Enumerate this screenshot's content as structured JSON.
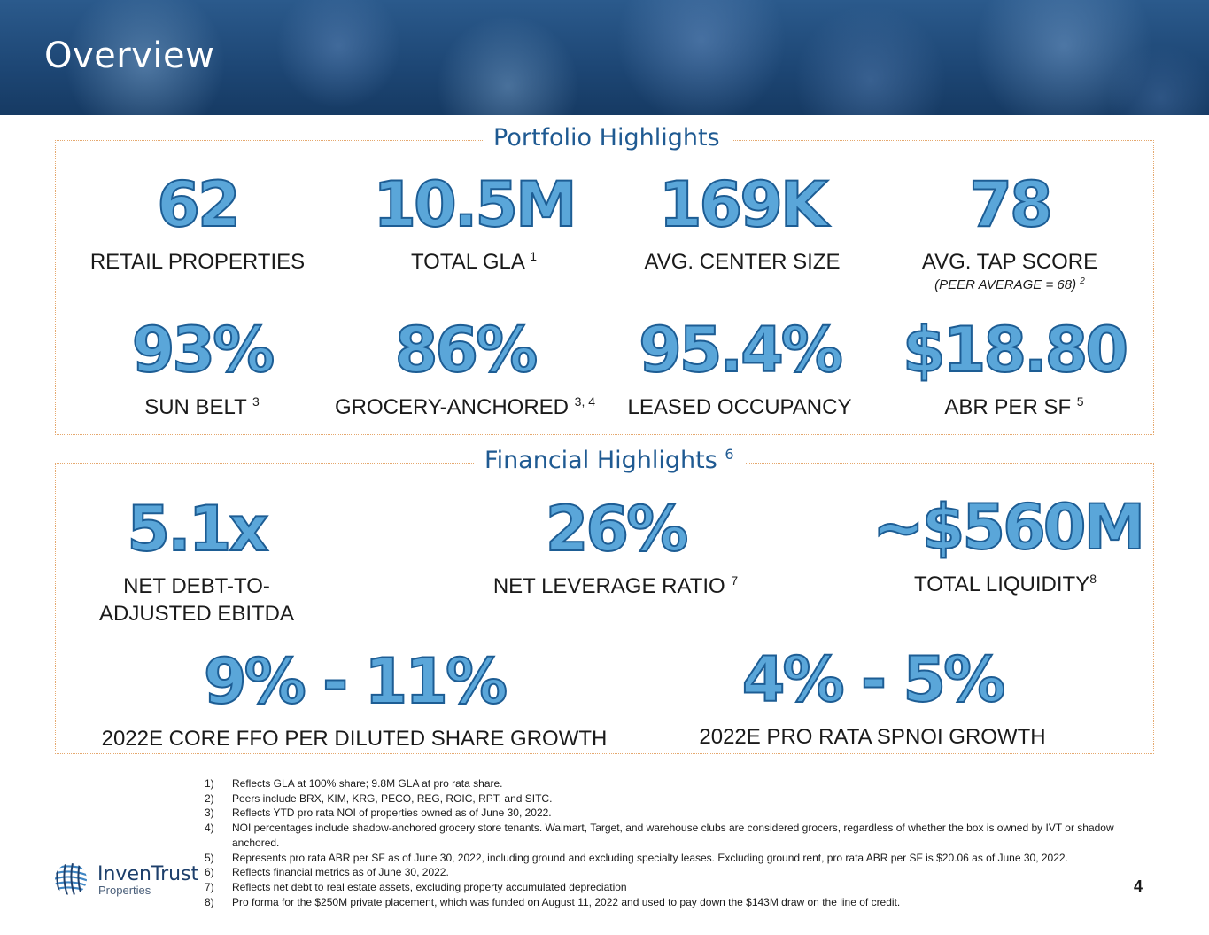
{
  "header": {
    "title": "Overview"
  },
  "portfolio": {
    "title": "Portfolio Highlights",
    "metrics": [
      {
        "value": "62",
        "label": "RETAIL PROPERTIES",
        "sup": ""
      },
      {
        "value": "10.5M",
        "label": "TOTAL GLA",
        "sup": "1"
      },
      {
        "value": "169K",
        "label": "AVG. CENTER SIZE",
        "sup": ""
      },
      {
        "value": "78",
        "label": "AVG. TAP SCORE",
        "sup": "",
        "note": "(PEER AVERAGE = 68)",
        "note_sup": "2"
      },
      {
        "value": "93%",
        "label": "SUN BELT",
        "sup": "3"
      },
      {
        "value": "86%",
        "label": "GROCERY-ANCHORED",
        "sup": "3, 4"
      },
      {
        "value": "95.4%",
        "label": "LEASED OCCUPANCY",
        "sup": ""
      },
      {
        "value": "$18.80",
        "label": "ABR PER SF",
        "sup": "5"
      }
    ]
  },
  "financial": {
    "title": "Financial Highlights",
    "title_sup": "6",
    "metrics": [
      {
        "value": "5.1x",
        "label_line1": "NET DEBT-TO-",
        "label_line2": "ADJUSTED EBITDA"
      },
      {
        "value": "26%",
        "label": "NET LEVERAGE RATIO",
        "sup": "7"
      },
      {
        "value": "~$560M",
        "label": "TOTAL LIQUIDITY",
        "sup": "8"
      },
      {
        "value": "9% - 11%",
        "label": "2022E CORE FFO PER DILUTED SHARE GROWTH"
      },
      {
        "value": "4% - 5%",
        "label": "2022E PRO RATA SPNOI GROWTH"
      }
    ]
  },
  "footnotes": [
    {
      "num": "1)",
      "text": "Reflects GLA at 100% share; 9.8M GLA at pro rata share."
    },
    {
      "num": "2)",
      "text": "Peers include BRX, KIM, KRG, PECO, REG, ROIC, RPT, and SITC."
    },
    {
      "num": "3)",
      "text": "Reflects YTD pro rata NOI of properties owned as of June 30, 2022."
    },
    {
      "num": "4)",
      "text": "NOI percentages include shadow-anchored grocery store tenants. Walmart, Target, and warehouse clubs are considered grocers, regardless of whether the box is owned by IVT or shadow anchored."
    },
    {
      "num": "5)",
      "text": "Represents pro rata ABR per SF as of June 30, 2022, including ground and excluding specialty leases. Excluding ground rent, pro rata ABR per SF is $20.06 as of June 30, 2022."
    },
    {
      "num": "6)",
      "text": "Reflects financial metrics as of June 30, 2022."
    },
    {
      "num": "7)",
      "text": "Reflects net debt to real estate assets, excluding property accumulated depreciation"
    },
    {
      "num": "8)",
      "text": "Pro forma for the $250M private placement, which was funded on August 11, 2022 and used to pay down the $143M draw on the line of credit."
    }
  ],
  "logo": {
    "name": "InvenTrust",
    "sub": "Properties"
  },
  "page_number": "4",
  "colors": {
    "accent": "#1f5a92",
    "number_fill": "#5aa6d9",
    "number_stroke": "#1d5d94",
    "border": "#e5a86e"
  }
}
